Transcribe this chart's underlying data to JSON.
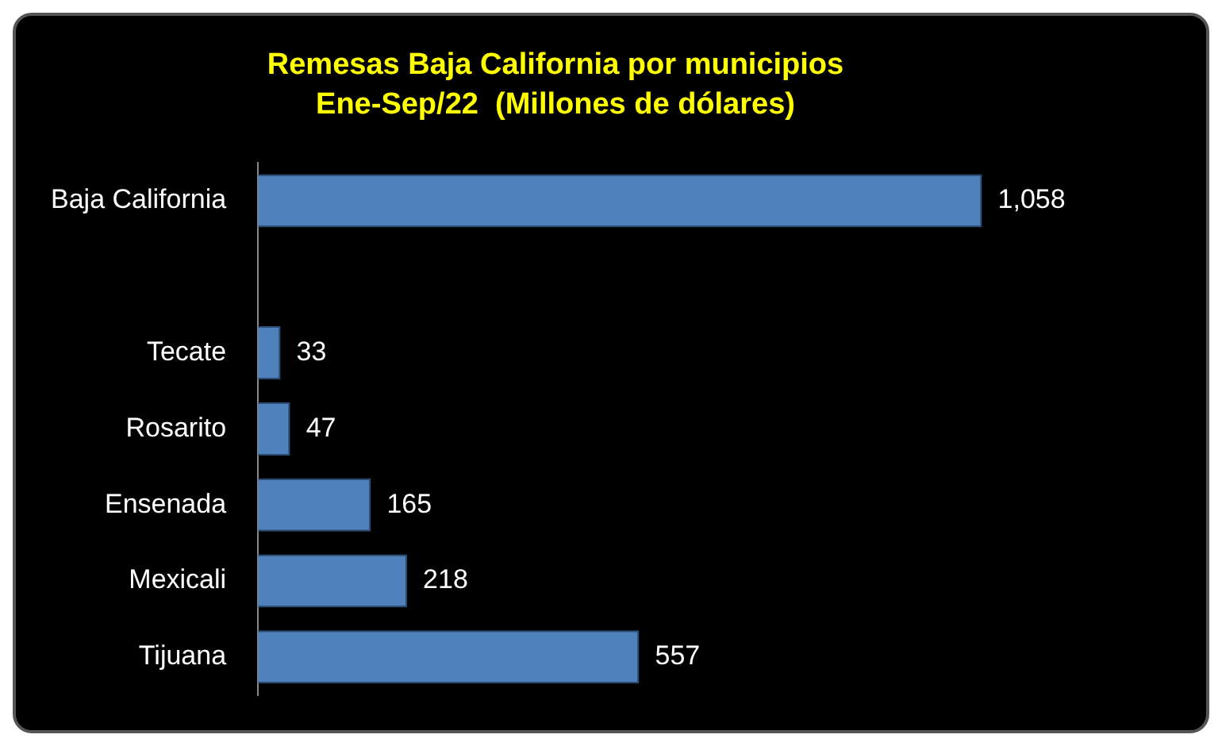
{
  "chart_data": {
    "type": "bar",
    "orientation": "horizontal",
    "title": "Remesas Baja California por municipios",
    "subtitle": "Ene-Sep/22  (Millones de dólares)",
    "categories": [
      "Baja California",
      null,
      "Tecate",
      "Rosarito",
      "Ensenada",
      "Mexicali",
      "Tijuana"
    ],
    "values": [
      1058,
      null,
      33,
      47,
      165,
      218,
      557
    ],
    "value_labels": [
      "1,058",
      null,
      "33",
      "47",
      "165",
      "218",
      "557"
    ],
    "color": "#4f81bd",
    "legend": false
  }
}
